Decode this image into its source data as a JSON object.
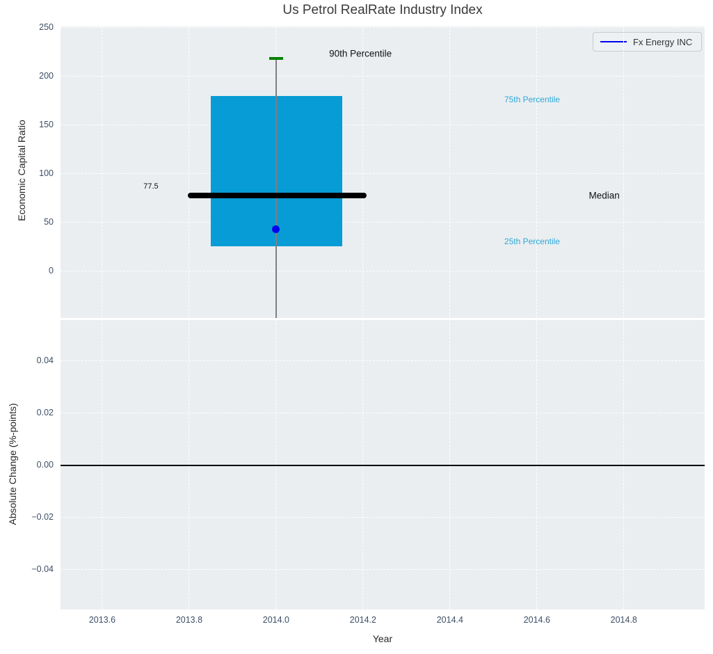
{
  "title": "Us Petrol RealRate Industry Index",
  "legend": {
    "label": "Fx Energy INC"
  },
  "colors": {
    "plot_bg": "#eaeef0",
    "grid": "#ffffff",
    "tick_label": "#3d4e66",
    "title_text": "#3a3a3a",
    "axis_label": "#262626",
    "box_fill": "#079cd5",
    "median_line": "#000000",
    "whisker": "#7f7f7f",
    "percentile_cap": "#008000",
    "company_dot": "#0000ee",
    "legend_line": "#0000ee",
    "zero_line": "#000000",
    "annotation_blue": "#2fa8da",
    "annotation_black": "#111111"
  },
  "chart_data": [
    {
      "type": "boxplot",
      "title": "Us Petrol RealRate Industry Index",
      "ylabel": "Economic Capital Ratio",
      "series_label": "Fx Energy INC",
      "legend_position": "upper right",
      "grid": "white dashed, on",
      "xlim": [
        2013.504,
        2014.986
      ],
      "ylim": [
        -47.9,
        251.4
      ],
      "yticks": {
        "values": [
          0,
          50,
          100,
          150,
          200,
          250
        ],
        "labels": [
          "0",
          "50",
          "100",
          "150",
          "200",
          "250"
        ]
      },
      "xticks": {
        "values": [
          2013.6,
          2013.8,
          2014.0,
          2014.2,
          2014.4,
          2014.6,
          2014.8
        ],
        "labels": []
      },
      "box": {
        "x_left": 2013.85,
        "x_right": 2014.152,
        "q1": 25.7,
        "q3": 180
      },
      "median": {
        "value": 77.5,
        "x_left": 2013.797,
        "x_right": 2014.208
      },
      "whisker": {
        "x": 2014.0,
        "high": 218.5,
        "low": -47.8
      },
      "percentile_90_cap": {
        "value": 218.5,
        "x_left": 2013.984,
        "x_right": 2014.016
      },
      "company_point": {
        "x": 2014.0,
        "y": 43,
        "series": "Fx Energy INC"
      },
      "annotations": [
        {
          "name": "90th-percentile-label",
          "text": "90th Percentile",
          "x": 2014.194,
          "y": 223.5,
          "color": "#111111",
          "size": 13.5
        },
        {
          "name": "75th-percentile-label",
          "text": "75th Percentile",
          "x": 2014.589,
          "y": 176.5,
          "color": "#2fa8da",
          "size": 12
        },
        {
          "name": "median-label",
          "text": "Median",
          "x": 2014.755,
          "y": 78,
          "color": "#111111",
          "size": 13.5
        },
        {
          "name": "25th-percentile-label",
          "text": "25th Percentile",
          "x": 2014.589,
          "y": 30.5,
          "color": "#2fa8da",
          "size": 12
        },
        {
          "name": "median-value-label",
          "text": "77.5",
          "x": 2013.712,
          "y": 87,
          "color": "#111111",
          "size": 11
        }
      ]
    },
    {
      "type": "line",
      "ylabel": "Absolute Change (%-points)",
      "xlabel": "Year",
      "grid": "white dashed, on",
      "xlim": [
        2013.504,
        2014.986
      ],
      "ylim": [
        -0.0552,
        0.0557
      ],
      "yticks": {
        "values": [
          0.04,
          0.02,
          0,
          -0.02,
          -0.04
        ],
        "labels": [
          "0.04",
          "0.02",
          "0.00",
          "−0.02",
          "−0.04"
        ]
      },
      "xticks": {
        "values": [
          2013.6,
          2013.8,
          2014.0,
          2014.2,
          2014.4,
          2014.6,
          2014.8
        ],
        "labels": [
          "2013.6",
          "2013.8",
          "2014.0",
          "2014.2",
          "2014.4",
          "2014.6",
          "2014.8"
        ]
      },
      "zero_line": 0.0,
      "series": []
    }
  ]
}
